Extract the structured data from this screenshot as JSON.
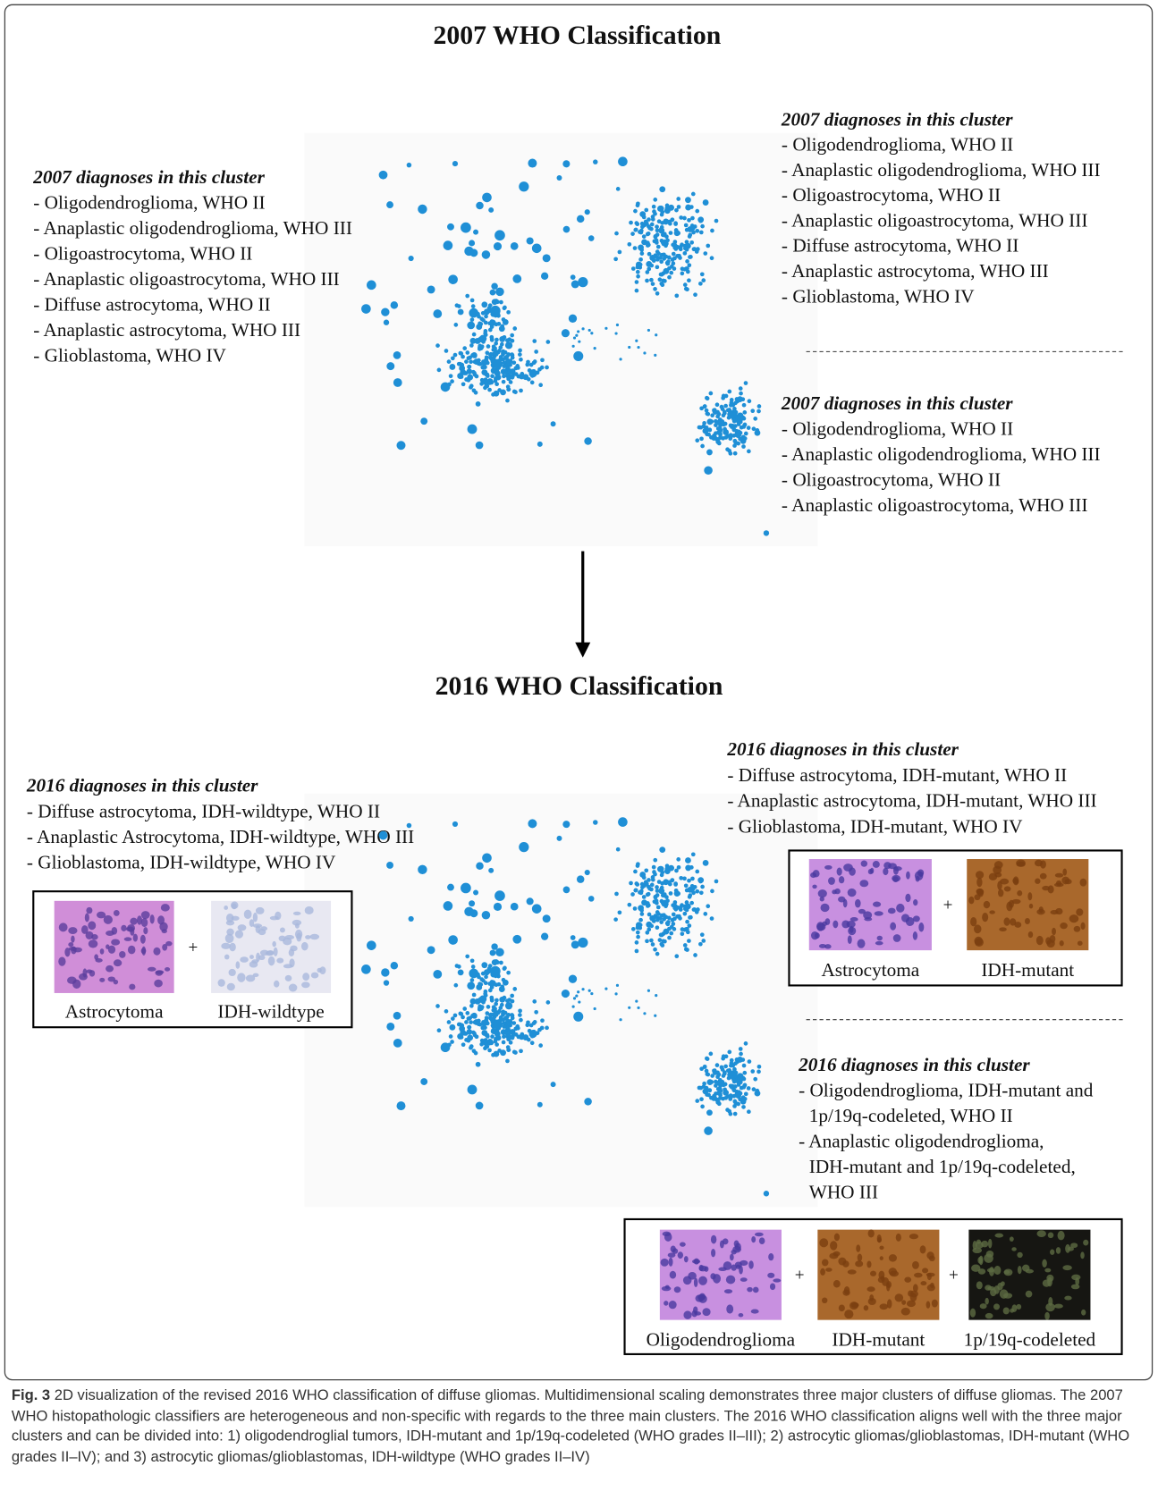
{
  "top": {
    "title": "2007 WHO Classification",
    "left_cluster": {
      "heading": "2007 diagnoses in this cluster",
      "items": [
        "- Oligodendroglioma, WHO II",
        "- Anaplastic oligodendroglioma, WHO III",
        "- Oligoastrocytoma, WHO II",
        "- Anaplastic oligoastrocytoma, WHO III",
        "- Diffuse astrocytoma, WHO II",
        "- Anaplastic astrocytoma, WHO III",
        "- Glioblastoma, WHO IV"
      ]
    },
    "right_upper_cluster": {
      "heading": "2007 diagnoses in this cluster",
      "items": [
        "- Oligodendroglioma, WHO II",
        "- Anaplastic oligodendroglioma, WHO III",
        "- Oligoastrocytoma, WHO II",
        "- Anaplastic oligoastrocytoma, WHO III",
        "- Diffuse astrocytoma, WHO II",
        "- Anaplastic astrocytoma, WHO III",
        "- Glioblastoma, WHO IV"
      ]
    },
    "right_lower_cluster": {
      "heading": "2007 diagnoses in this cluster",
      "items": [
        "- Oligodendroglioma, WHO II",
        "- Anaplastic oligodendroglioma, WHO III",
        "- Oligoastrocytoma, WHO II",
        "- Anaplastic oligoastrocytoma, WHO III"
      ]
    }
  },
  "bottom": {
    "title": "2016 WHO Classification",
    "left_cluster": {
      "heading": "2016 diagnoses in this cluster",
      "items": [
        "- Diffuse astrocytoma, IDH-wildtype, WHO II",
        "- Anaplastic Astrocytoma, IDH-wildtype, WHO III",
        "- Glioblastoma, IDH-wildtype, WHO IV"
      ],
      "images": {
        "labels": [
          "Astrocytoma",
          "IDH-wildtype"
        ],
        "separator": "+"
      }
    },
    "right_upper_cluster": {
      "heading": "2016 diagnoses in this cluster",
      "items": [
        "- Diffuse astrocytoma, IDH-mutant, WHO II",
        "- Anaplastic astrocytoma, IDH-mutant, WHO III",
        "- Glioblastoma, IDH-mutant, WHO IV"
      ],
      "images": {
        "labels": [
          "Astrocytoma",
          "IDH-mutant"
        ],
        "separator": "+"
      }
    },
    "right_lower_cluster": {
      "heading": "2016 diagnoses in this cluster",
      "items": [
        [
          "- Oligodendroglioma, IDH-mutant and",
          "1p/19q-codeleted, WHO II"
        ],
        [
          "- Anaplastic oligodendroglioma,",
          "IDH-mutant and 1p/19q-codeleted,",
          "WHO III"
        ]
      ],
      "images": {
        "labels": [
          "Oligodendroglioma",
          "IDH-mutant",
          "1p/19q-codeleted"
        ],
        "separator": "+"
      }
    }
  },
  "caption": {
    "label": "Fig. 3",
    "text": "2D visualization of the revised 2016 WHO classification of diffuse gliomas. Multidimensional scaling demonstrates three major clusters of diffuse gliomas. The 2007 WHO histopathologic classifiers are heterogeneous and non-specific with regards to the three main clusters. The 2016 WHO classification aligns well with the three major clusters and can be divided into: 1) oligodendroglial tumors, IDH-mutant and 1p/19q-codeleted (WHO grades II–III); 2) astrocytic gliomas/glioblastomas, IDH-mutant (WHO grades II–IV); and 3) astrocytic gliomas/glioblastomas, IDH-wildtype (WHO grades II–IV)"
  }
}
